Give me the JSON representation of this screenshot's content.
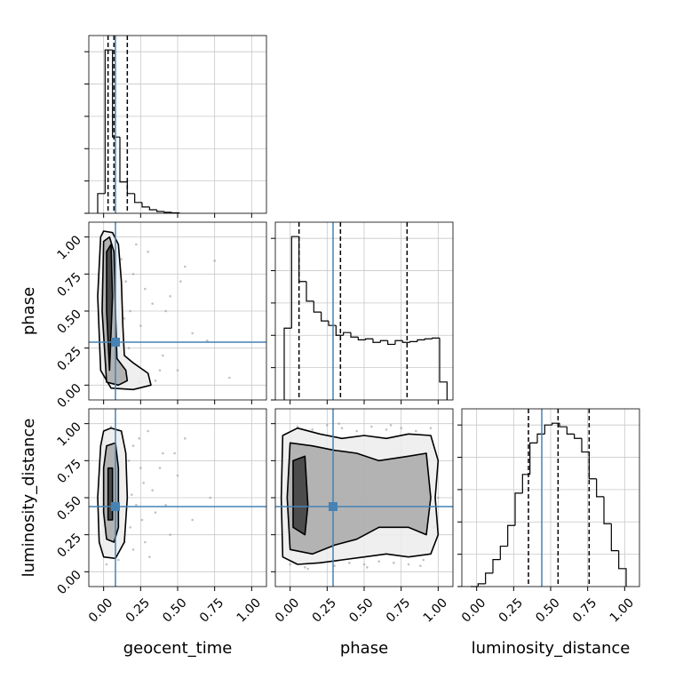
{
  "chart_data": {
    "type": "corner",
    "parameters": [
      "geocent_time",
      "phase",
      "luminosity_distance"
    ],
    "truths": [
      0.08,
      0.29,
      0.44
    ],
    "truth_color": "#4682b4",
    "xlim": [
      -0.1,
      1.1
    ],
    "ylim": [
      -0.1,
      1.1
    ],
    "xticks": [
      {
        "value": 0,
        "label": "0.00"
      },
      {
        "value": 0.25,
        "label": "0.25"
      },
      {
        "value": 0.5,
        "label": "0.50"
      },
      {
        "value": 0.75,
        "label": "0.75"
      },
      {
        "value": 1,
        "label": "1.00"
      }
    ],
    "yticks": [
      {
        "value": 0,
        "label": "0.00"
      },
      {
        "value": 0.25,
        "label": "0.25"
      },
      {
        "value": 0.5,
        "label": "0.50"
      },
      {
        "value": 0.75,
        "label": "0.75"
      },
      {
        "value": 1,
        "label": "1.00"
      }
    ],
    "hist_ylim": [
      0,
      1100
    ],
    "hist_yticks": [
      0,
      200,
      400,
      600,
      800,
      1000
    ],
    "grid": true,
    "scatter_color": "#9a9a9a",
    "contour_colors": [
      "#ececec",
      "#a8a8a8",
      "#3a3a3a"
    ],
    "histograms": [
      {
        "bins": [
          -0.04,
          0.01,
          0.06,
          0.11,
          0.16,
          0.21,
          0.26,
          0.31,
          0.36,
          0.41,
          0.46,
          0.51
        ],
        "counts": [
          122,
          1011,
          472,
          194,
          122,
          67,
          39,
          22,
          11,
          6,
          3
        ],
        "quantiles": [
          0.03,
          0.07,
          0.16
        ]
      },
      {
        "bins": [
          -0.04,
          0.01,
          0.06,
          0.11,
          0.16,
          0.21,
          0.26,
          0.31,
          0.36,
          0.41,
          0.46,
          0.51,
          0.56,
          0.61,
          0.66,
          0.71,
          0.76,
          0.81,
          0.86,
          0.91,
          0.96,
          1.01,
          1.06
        ],
        "counts": [
          444,
          1011,
          733,
          611,
          544,
          489,
          461,
          400,
          417,
          389,
          372,
          378,
          356,
          367,
          344,
          367,
          356,
          361,
          372,
          378,
          383,
          111
        ],
        "quantiles": [
          0.06,
          0.34,
          0.79
        ]
      },
      {
        "bins": [
          -0.04,
          0.01,
          0.06,
          0.11,
          0.16,
          0.21,
          0.26,
          0.31,
          0.36,
          0.41,
          0.46,
          0.51,
          0.56,
          0.61,
          0.66,
          0.71,
          0.76,
          0.81,
          0.86,
          0.91,
          0.96,
          1.01
        ],
        "counts": [
          0,
          17,
          83,
          167,
          250,
          378,
          578,
          694,
          889,
          944,
          1000,
          1011,
          989,
          944,
          917,
          833,
          667,
          556,
          389,
          222,
          111
        ],
        "quantiles": [
          0.35,
          0.55,
          0.76
        ]
      }
    ],
    "panels": [
      {
        "scatter": {
          "x": [
            0.02,
            0.05,
            0.08,
            0.12,
            0.15,
            0.18,
            0.22,
            0.25,
            0.3,
            0.35,
            0.4,
            0.45,
            0.5,
            0.55,
            0.6,
            0.7,
            0.75,
            0.85,
            0.1,
            0.14,
            0.2,
            0.28,
            0.33,
            0.38,
            0.13,
            0.17,
            0.24,
            0.3,
            0.42,
            0.52
          ],
          "y": [
            0.9,
            0.6,
            0.3,
            0.85,
            0.7,
            0.5,
            0.95,
            0.4,
            0.02,
            0.03,
            0.2,
            0.6,
            0.1,
            0.8,
            0.35,
            0.3,
            0.84,
            0.05,
            0.15,
            0.45,
            0.75,
            0.65,
            0.55,
            0.1,
            0.05,
            0.25,
            0.02,
            0.9,
            0.5,
            0.7
          ]
        },
        "contours": [
          {
            "x": [
              -0.02,
              0.0,
              0.06,
              0.1,
              0.12,
              0.13,
              0.14,
              0.2,
              0.3,
              0.32,
              0.2,
              0.05,
              -0.02,
              -0.04
            ],
            "y": [
              1.0,
              1.04,
              1.03,
              0.95,
              0.7,
              0.4,
              0.2,
              0.15,
              0.08,
              0.0,
              -0.03,
              -0.02,
              0.1,
              0.6
            ]
          },
          {
            "x": [
              0.0,
              0.04,
              0.07,
              0.08,
              0.09,
              0.15,
              0.16,
              0.1,
              0.02,
              -0.01
            ],
            "y": [
              0.97,
              1.0,
              0.9,
              0.5,
              0.18,
              0.1,
              0.03,
              0.0,
              0.02,
              0.5
            ]
          },
          {
            "x": [
              0.02,
              0.05,
              0.06,
              0.04,
              0.02
            ],
            "y": [
              0.9,
              0.95,
              0.6,
              0.1,
              0.5
            ]
          }
        ]
      },
      {
        "scatter": {
          "x": [
            0.02,
            0.05,
            0.1,
            0.12,
            0.15,
            0.18,
            0.2,
            0.22,
            0.25,
            0.28,
            0.3,
            0.33,
            0.35,
            0.4,
            0.45,
            0.5,
            0.55,
            0.6,
            0.72,
            0.2,
            0.24,
            0.17,
            0.27,
            0.31,
            0.14,
            0.38,
            0.42,
            0.26,
            0.19,
            0.48
          ],
          "y": [
            0.05,
            0.98,
            0.08,
            0.93,
            0.6,
            0.3,
            0.85,
            0.45,
            0.7,
            0.2,
            0.95,
            0.55,
            0.4,
            0.8,
            0.25,
            0.65,
            0.9,
            0.35,
            0.5,
            0.15,
            0.9,
            0.75,
            0.6,
            0.1,
            0.2,
            0.7,
            0.45,
            0.35,
            0.52,
            0.8
          ]
        },
        "contours": [
          {
            "x": [
              0.0,
              0.05,
              0.12,
              0.15,
              0.16,
              0.14,
              0.08,
              0.0,
              -0.03,
              -0.04,
              -0.02
            ],
            "y": [
              0.95,
              0.97,
              0.95,
              0.8,
              0.5,
              0.2,
              0.09,
              0.1,
              0.2,
              0.5,
              0.85
            ]
          },
          {
            "x": [
              0.02,
              0.08,
              0.1,
              0.1,
              0.07,
              0.02,
              0.0,
              0.0
            ],
            "y": [
              0.85,
              0.87,
              0.7,
              0.3,
              0.2,
              0.22,
              0.4,
              0.7
            ]
          },
          {
            "x": [
              0.03,
              0.06,
              0.06,
              0.03
            ],
            "y": [
              0.7,
              0.7,
              0.35,
              0.35
            ]
          }
        ]
      },
      {
        "scatter": {
          "x": [
            0.0,
            0.05,
            0.1,
            0.15,
            0.2,
            0.25,
            0.3,
            0.35,
            0.4,
            0.45,
            0.5,
            0.55,
            0.6,
            0.65,
            0.7,
            0.75,
            0.8,
            0.85,
            0.9,
            0.95,
            1.0,
            0.12,
            0.33,
            0.52,
            0.68,
            0.88,
            0.22,
            0.47,
            0.77,
            0.97
          ],
          "y": [
            0.05,
            0.98,
            0.03,
            0.96,
            0.07,
            0.99,
            0.04,
            0.97,
            0.06,
            0.95,
            0.05,
            0.98,
            0.07,
            0.96,
            0.06,
            0.97,
            0.05,
            0.95,
            0.08,
            0.97,
            0.5,
            0.02,
            1.0,
            0.03,
            0.99,
            0.04,
            0.5,
            0.6,
            0.45,
            0.3
          ]
        },
        "contours": [
          {
            "x": [
              -0.05,
              0.05,
              0.2,
              0.35,
              0.5,
              0.65,
              0.8,
              0.95,
              1.0,
              0.98,
              1.0,
              0.95,
              0.8,
              0.65,
              0.5,
              0.35,
              0.2,
              0.05,
              -0.05,
              -0.06
            ],
            "y": [
              0.92,
              0.97,
              0.93,
              0.9,
              0.92,
              0.9,
              0.93,
              0.92,
              0.75,
              0.5,
              0.25,
              0.12,
              0.1,
              0.12,
              0.1,
              0.08,
              0.06,
              0.05,
              0.1,
              0.5
            ]
          },
          {
            "x": [
              0.0,
              0.15,
              0.3,
              0.45,
              0.6,
              0.8,
              0.92,
              0.95,
              0.92,
              0.8,
              0.6,
              0.45,
              0.3,
              0.15,
              0.0,
              -0.02
            ],
            "y": [
              0.87,
              0.85,
              0.82,
              0.8,
              0.75,
              0.78,
              0.8,
              0.5,
              0.25,
              0.3,
              0.3,
              0.22,
              0.18,
              0.12,
              0.15,
              0.5
            ]
          },
          {
            "x": [
              0.02,
              0.1,
              0.12,
              0.1,
              0.02
            ],
            "y": [
              0.75,
              0.78,
              0.45,
              0.25,
              0.3
            ]
          }
        ]
      }
    ]
  }
}
